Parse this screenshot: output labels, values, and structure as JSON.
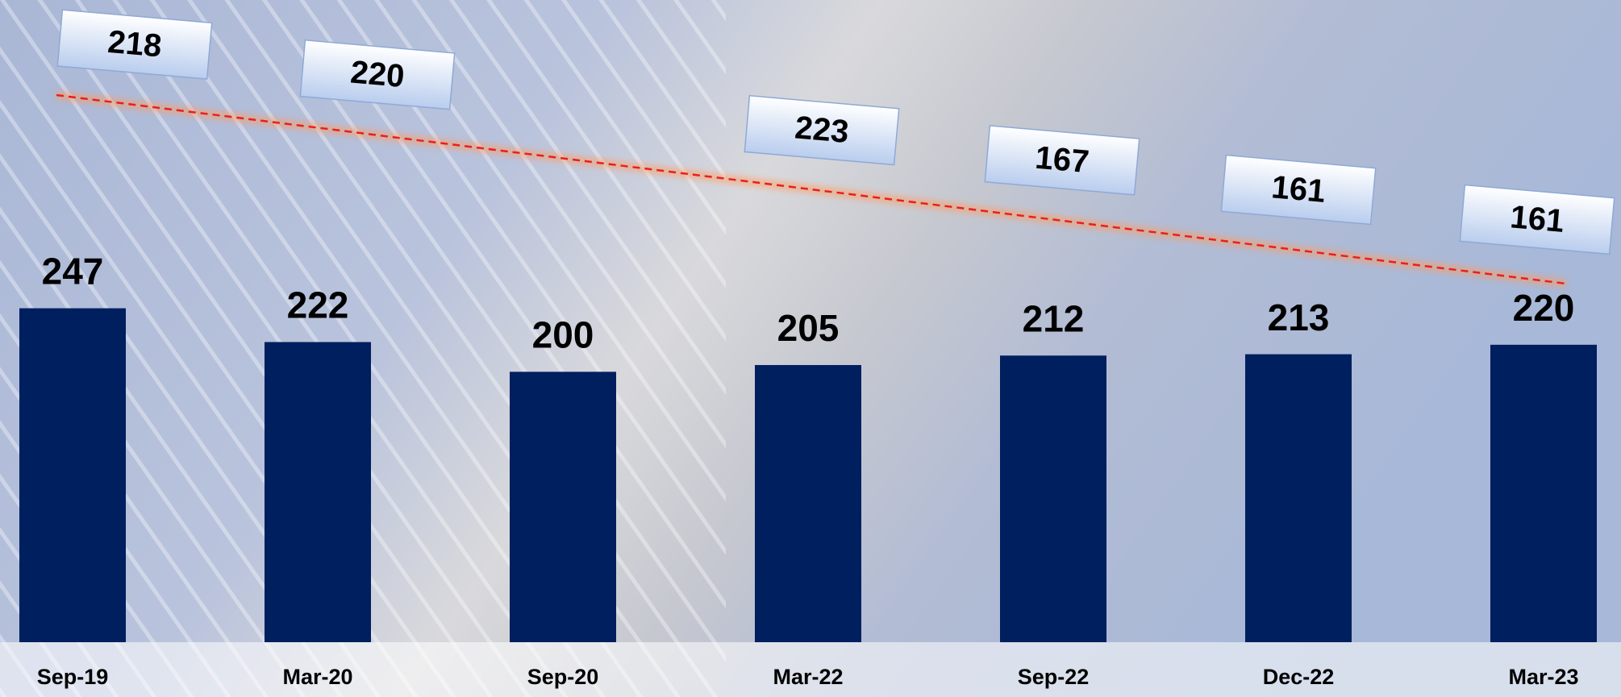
{
  "chart_data": {
    "type": "bar",
    "categories": [
      "Sep-19",
      "Mar-20",
      "Sep-20",
      "Mar-22",
      "Sep-22",
      "Dec-22",
      "Mar-23"
    ],
    "series": [
      {
        "type": "bar",
        "color": "#001f5f",
        "values": [
          247,
          222,
          200,
          205,
          212,
          213,
          220
        ]
      },
      {
        "type": "line",
        "color": "#ff3b1f",
        "values": [
          218,
          220,
          null,
          223,
          167,
          161,
          161
        ]
      }
    ],
    "ylim": [
      0,
      475
    ]
  }
}
